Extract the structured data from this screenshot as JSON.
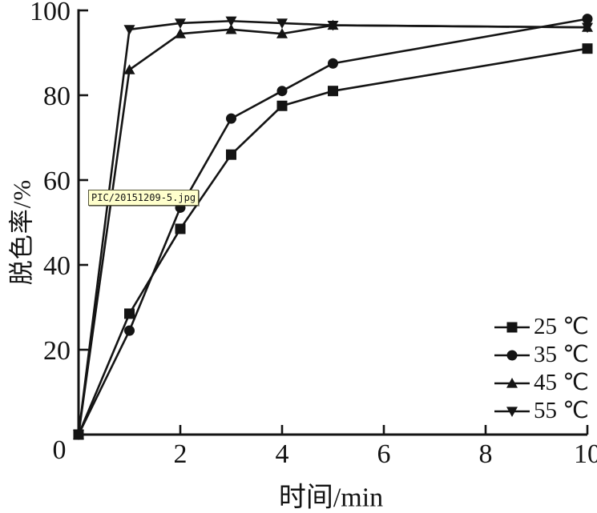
{
  "figure": {
    "overlay_label": "PIC/20151209-5.jpg",
    "colors": {
      "ink": "#141414",
      "background": "#ffffff",
      "overlay_bg": "#ffffcc",
      "overlay_border": "#55553a"
    }
  },
  "chart_data": {
    "type": "line",
    "title": "",
    "xlabel": "时间/min",
    "ylabel": "脱色率/%",
    "xlim": [
      0,
      10
    ],
    "ylim": [
      0,
      100
    ],
    "xticks": [
      2,
      4,
      6,
      8,
      10
    ],
    "yticks": [
      20,
      40,
      60,
      80,
      100
    ],
    "origin_tick_label": "0",
    "grid": false,
    "legend_position": "lower-right",
    "x": [
      0,
      1,
      2,
      3,
      4,
      5,
      10
    ],
    "series": [
      {
        "name": "25 ℃",
        "marker": "square",
        "values": [
          0,
          28.5,
          48.5,
          66,
          77.5,
          81,
          91
        ]
      },
      {
        "name": "35 ℃",
        "marker": "circle",
        "values": [
          0,
          24.5,
          53.5,
          74.5,
          81,
          87.5,
          98
        ]
      },
      {
        "name": "45 ℃",
        "marker": "triangle-up",
        "values": [
          0,
          86,
          94.5,
          95.5,
          94.5,
          96.5,
          96
        ]
      },
      {
        "name": "55 ℃",
        "marker": "triangle-down",
        "values": [
          0,
          95.5,
          97,
          97.5,
          97,
          96.5,
          96
        ]
      }
    ]
  }
}
